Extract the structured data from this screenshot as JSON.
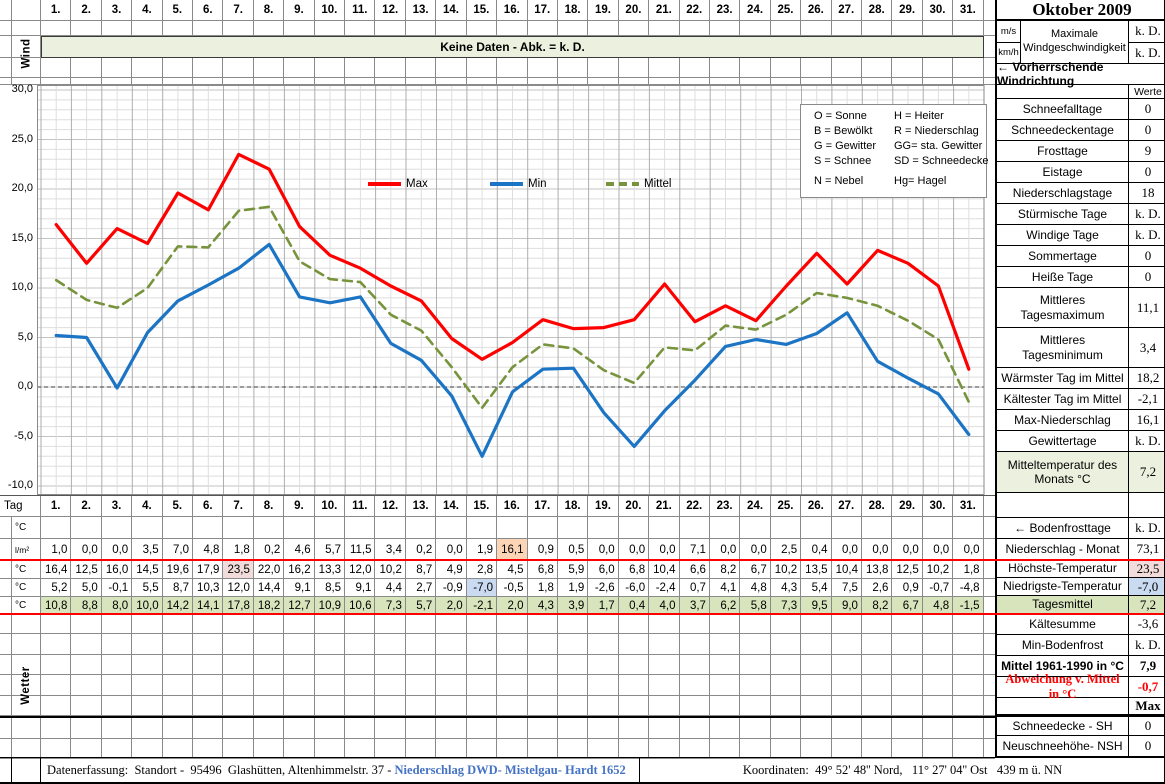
{
  "days": [
    "1.",
    "2.",
    "3.",
    "4.",
    "5.",
    "6.",
    "7.",
    "8.",
    "9.",
    "10.",
    "11.",
    "12.",
    "13.",
    "14.",
    "15.",
    "16.",
    "17.",
    "18.",
    "19.",
    "20.",
    "21.",
    "22.",
    "23.",
    "24.",
    "25.",
    "26.",
    "27.",
    "28.",
    "29.",
    "30.",
    "31."
  ],
  "wind_section": {
    "row_label": "Wind",
    "no_data_banner": "Keine Daten - Abk. = k. D."
  },
  "chart_data": {
    "type": "line",
    "x_days": [
      1,
      2,
      3,
      4,
      5,
      6,
      7,
      8,
      9,
      10,
      11,
      12,
      13,
      14,
      15,
      16,
      17,
      18,
      19,
      20,
      21,
      22,
      23,
      24,
      25,
      26,
      27,
      28,
      29,
      30,
      31
    ],
    "ylim": [
      -10,
      30
    ],
    "ytick_major": 5,
    "ytick_minor": 1,
    "ytick_labels": [
      "30,0",
      "25,0",
      "20,0",
      "15,0",
      "10,0",
      "5,0",
      "0,0",
      "-5,0",
      "-10,0"
    ],
    "grid": "minor-and-major",
    "zero_line": "dashed",
    "legend_position": "top-inside",
    "series": [
      {
        "name": "Max",
        "color": "#ff0000",
        "dash": false,
        "values": [
          16.4,
          12.5,
          16.0,
          14.5,
          19.6,
          17.9,
          23.5,
          22.0,
          16.2,
          13.3,
          12.0,
          10.2,
          8.7,
          4.9,
          2.8,
          4.5,
          6.8,
          5.9,
          6.0,
          6.8,
          10.4,
          6.6,
          8.2,
          6.7,
          10.2,
          13.5,
          10.4,
          13.8,
          12.5,
          10.2,
          1.8
        ]
      },
      {
        "name": "Min",
        "color": "#1b74c4",
        "dash": false,
        "values": [
          5.2,
          5.0,
          -0.1,
          5.5,
          8.7,
          10.3,
          12.0,
          14.4,
          9.1,
          8.5,
          9.1,
          4.4,
          2.7,
          -0.9,
          -7.0,
          -0.5,
          1.8,
          1.9,
          -2.6,
          -6.0,
          -2.4,
          0.7,
          4.1,
          4.8,
          4.3,
          5.4,
          7.5,
          2.6,
          0.9,
          -0.7,
          -4.8
        ]
      },
      {
        "name": "Mittel",
        "color": "#77933c",
        "dash": true,
        "values": [
          10.8,
          8.8,
          8.0,
          10.0,
          14.2,
          14.1,
          17.8,
          18.2,
          12.7,
          10.9,
          10.6,
          7.3,
          5.7,
          2.0,
          -2.1,
          2.0,
          4.3,
          3.9,
          1.7,
          0.4,
          4.0,
          3.7,
          6.2,
          5.8,
          7.3,
          9.5,
          9.0,
          8.2,
          6.7,
          4.8,
          -1.5
        ]
      }
    ]
  },
  "abbrev_box": {
    "left": [
      "O = Sonne",
      "B = Bewölkt",
      "G = Gewitter",
      "S = Schnee",
      "N = Nebel"
    ],
    "right": [
      "H = Heiter",
      "R = Niederschlag",
      "GG= sta. Gewitter",
      "SD = Schneedecke",
      "Hg= Hagel"
    ]
  },
  "table": {
    "tag_label": "Tag",
    "wetter_label": "Wetter",
    "rows": [
      {
        "id": "temperatur-leer",
        "unit": "°C"
      },
      {
        "id": "niederschlag",
        "unit": "l/m²",
        "highlight_day": 16,
        "highlight_bg": "#fbd5b5",
        "values": [
          1.0,
          0.0,
          0.0,
          3.5,
          7.0,
          4.8,
          1.8,
          0.2,
          4.6,
          5.7,
          11.5,
          3.4,
          0.2,
          0.0,
          1.9,
          16.1,
          0.9,
          0.5,
          0.0,
          0.0,
          0.0,
          7.1,
          0.0,
          0.0,
          2.5,
          0.4,
          0.0,
          0.0,
          0.0,
          0.0,
          0.0
        ]
      },
      {
        "id": "hoechsttemperatur",
        "unit": "°C",
        "series_name": "Max",
        "highlight_day": 7,
        "highlight_bg": "#f2dcdb"
      },
      {
        "id": "tiefsttemperatur",
        "unit": "°C",
        "series_name": "Min",
        "highlight_day": 15,
        "highlight_bg": "#c9daf1"
      },
      {
        "id": "tagesmittel",
        "unit": "°C",
        "series_name": "Mittel",
        "row_bg": "#d8e4bc"
      }
    ]
  },
  "right_panel": {
    "title": "Oktober 2009",
    "wind": {
      "units": [
        "m/s",
        "km/h"
      ],
      "label": "Maximale Windgeschwindigkeit",
      "values": [
        "k. D.",
        "k. D."
      ]
    },
    "direction_label": "←  Vorherrschende Windrichtung",
    "werte_header": "Werte",
    "rows": [
      {
        "label": "Schneefalltage",
        "value": "0"
      },
      {
        "label": "Schneedeckentage",
        "value": "0"
      },
      {
        "label": "Frosttage",
        "value": "9"
      },
      {
        "label": "Eistage",
        "value": "0"
      },
      {
        "label": "Niederschlagstage",
        "value": "18"
      },
      {
        "label": "Stürmische Tage",
        "value": "k. D."
      },
      {
        "label": "Windige Tage",
        "value": "k. D."
      },
      {
        "label": "Sommertage",
        "value": "0"
      },
      {
        "label": "Heiße Tage",
        "value": "0"
      },
      {
        "label": "Mittleres Tagesmaximum",
        "value": "11,1",
        "tall": true
      },
      {
        "label": "Mittleres Tagesminimum",
        "value": "3,4",
        "tall": true
      },
      {
        "label": "Wärmster Tag im Mittel",
        "value": "18,2"
      },
      {
        "label": "Kältester Tag im Mittel",
        "value": "-2,1"
      },
      {
        "label": "Max-Niederschlag",
        "value": "16,1"
      },
      {
        "label": "Gewittertage",
        "value": "k. D."
      },
      {
        "label": "Mitteltemperatur des Monats °C",
        "value": "7,2",
        "tall": true,
        "bg": "#ebf1de"
      },
      {
        "spacer": true
      },
      {
        "label": "← Bodenfrosttage",
        "value": "k. D."
      },
      {
        "label": "Niederschlag - Monat",
        "value": "73,1"
      },
      {
        "label": "Höchste-Temperatur",
        "value": "23,5",
        "compact": true,
        "value_bg": "#f2dcdb"
      },
      {
        "label": "Niedrigste-Temperatur",
        "value": "-7,0",
        "compact": true,
        "value_bg": "#c9daf1"
      },
      {
        "label": "Tagesmittel",
        "value": "7,2",
        "compact": true,
        "bg": "#d8e4bc"
      },
      {
        "label": "Kältesumme",
        "value": "-3,6"
      },
      {
        "label": "Min-Bodenfrost",
        "value": "k. D."
      },
      {
        "label": "Mittel 1961-1990 in °C",
        "value": "7,9",
        "bold": true
      },
      {
        "label": "Abweichung v. Mittel in °C",
        "value": "-0,7",
        "red_text": true
      },
      {
        "label": "",
        "value": "Max",
        "max_header": true,
        "value_bold": true
      },
      {
        "label": "Schneedecke -  SH",
        "value": "0",
        "heavy_top": true
      },
      {
        "label": "Neuschneehöhe- NSH",
        "value": "0"
      }
    ]
  },
  "footer": {
    "left_plain": "Datenerfassung:  Standort -  95496  Glashütten, Altenhimmelstr. 37 - ",
    "left_link": "Niederschlag DWD- Mistelgau- Hardt 1652",
    "right": "Koordinaten:  49° 52' 48'' Nord,   11° 27' 04'' Ost   439 m ü. NN"
  },
  "colors": {
    "banner_green": "#ebf1de",
    "row_green": "#d8e4bc",
    "highlight_pink": "#f2dcdb",
    "highlight_orange": "#fbd5b5",
    "highlight_blue": "#c9daf1",
    "separator_red": "#ff0000",
    "link_blue": "#4472c4"
  }
}
